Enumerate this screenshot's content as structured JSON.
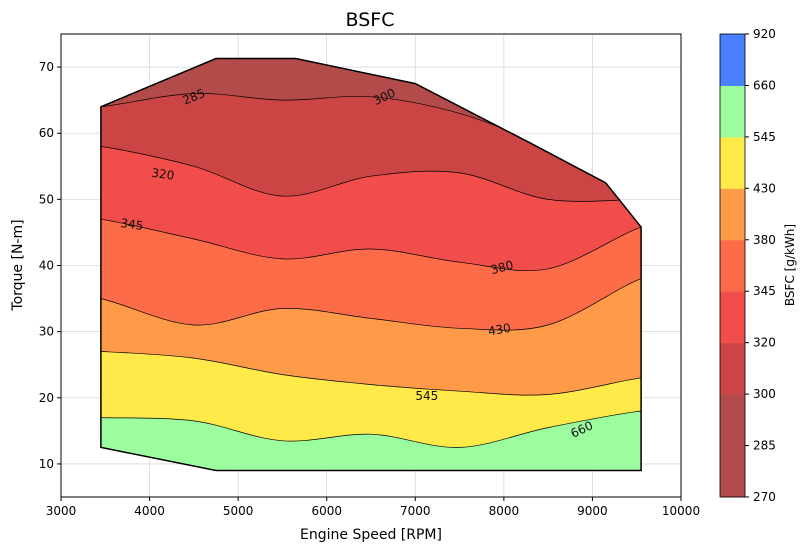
{
  "chart_data": {
    "type": "contour",
    "title": "BSFC",
    "xlabel": "Engine Speed [RPM]",
    "ylabel": "Torque [N-m]",
    "xlim": [
      3000,
      10000
    ],
    "ylim": [
      5,
      75
    ],
    "x_ticks": [
      3000,
      4000,
      5000,
      6000,
      7000,
      8000,
      9000,
      10000
    ],
    "y_ticks": [
      10,
      20,
      30,
      40,
      50,
      60,
      70
    ],
    "grid": true,
    "boundary": [
      [
        3450,
        64
      ],
      [
        4750,
        71.3
      ],
      [
        5650,
        71.3
      ],
      [
        7000,
        67.5
      ],
      [
        8300,
        58.5
      ],
      [
        9150,
        52.5
      ],
      [
        9550,
        45.8
      ],
      [
        9550,
        9
      ],
      [
        4750,
        9
      ],
      [
        3450,
        12.5
      ]
    ],
    "bands": [
      {
        "range": [
          270,
          285
        ],
        "color": "#b34b4b",
        "y": []
      },
      {
        "range": [
          285,
          300
        ],
        "color": "#b34b4b",
        "y": [
          72,
          72,
          72,
          72,
          72,
          72,
          72
        ]
      },
      {
        "range": [
          300,
          320
        ],
        "color": "#cc4545",
        "y": [
          64,
          66,
          65,
          65.5,
          63,
          58,
          53
        ]
      },
      {
        "range": [
          320,
          345
        ],
        "color": "#f14d4a",
        "y": [
          58,
          55,
          50.5,
          53.5,
          54,
          50,
          50
        ]
      },
      {
        "range": [
          345,
          380
        ],
        "color": "#fd6c48",
        "y": [
          47,
          44,
          41,
          42.5,
          40.5,
          39.5,
          45.8
        ]
      },
      {
        "range": [
          380,
          430
        ],
        "color": "#fe9a48",
        "y": [
          35,
          31,
          33.5,
          32,
          30.5,
          31,
          38
        ]
      },
      {
        "range": [
          430,
          545
        ],
        "color": "#ffea4a",
        "y": [
          27,
          26,
          23.5,
          22,
          21,
          20.5,
          23
        ]
      },
      {
        "range": [
          545,
          660
        ],
        "color": "#9cfd9e",
        "y": [
          17,
          16.5,
          13.5,
          14.5,
          12.5,
          15.5,
          18
        ]
      },
      {
        "range": [
          660,
          920
        ],
        "color": "#4a7fff",
        "y": [
          9,
          9,
          9,
          9,
          9,
          9,
          9
        ]
      }
    ],
    "band_x": [
      3450,
      4500,
      5500,
      6500,
      7500,
      8500,
      9550
    ],
    "contour_labels": [
      {
        "text": "285",
        "x": 4500,
        "y": 65.5,
        "angle": -22
      },
      {
        "text": "300",
        "x": 6650,
        "y": 65.5,
        "angle": -25
      },
      {
        "text": "320",
        "x": 4150,
        "y": 53.8,
        "angle": 8
      },
      {
        "text": "345",
        "x": 3800,
        "y": 46.2,
        "angle": 8
      },
      {
        "text": "380",
        "x": 7980,
        "y": 39.7,
        "angle": -15
      },
      {
        "text": "430",
        "x": 7950,
        "y": 30.3,
        "angle": -10
      },
      {
        "text": "545",
        "x": 7130,
        "y": 20.3,
        "angle": 0
      },
      {
        "text": "660",
        "x": 8880,
        "y": 15.2,
        "angle": -25
      }
    ],
    "colorbar": {
      "label": "BSFC [g/kWh]",
      "levels": [
        270,
        285,
        300,
        320,
        345,
        380,
        430,
        545,
        660,
        920
      ],
      "colors": [
        "#b34b4b",
        "#b34b4b",
        "#cc4545",
        "#f14d4a",
        "#fd6c48",
        "#fe9a48",
        "#ffea4a",
        "#9cfd9e",
        "#4a7fff"
      ]
    }
  }
}
